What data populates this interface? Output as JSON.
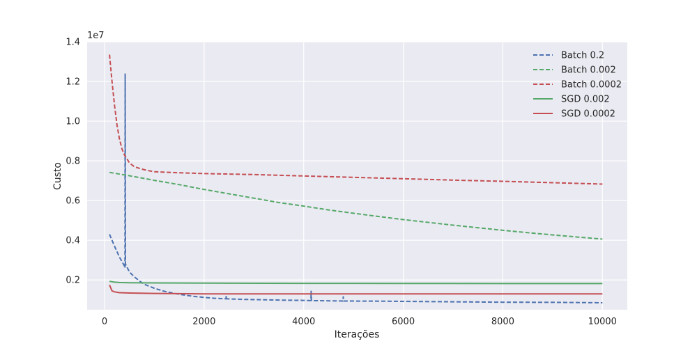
{
  "chart_data": {
    "type": "line",
    "xlabel": "Iterações",
    "ylabel": "Custo",
    "y_multiplier_label": "1e7",
    "xlim": [
      -350,
      10500
    ],
    "ylim": [
      0.05,
      1.4
    ],
    "x_ticks": [
      0,
      2000,
      4000,
      6000,
      8000,
      10000
    ],
    "x_tick_labels": [
      "0",
      "2000",
      "4000",
      "6000",
      "8000",
      "10000"
    ],
    "y_ticks": [
      0.2,
      0.4,
      0.6,
      0.8,
      1.0,
      1.2,
      1.4
    ],
    "y_tick_labels": [
      "0.2",
      "0.4",
      "0.6",
      "0.8",
      "1.0",
      "1.2",
      "1.4"
    ],
    "grid": true,
    "legend_position": "top-right",
    "series": [
      {
        "name": "Batch 0.2",
        "style": "dashed",
        "color": "#4c72b0",
        "points": [
          [
            100,
            0.43
          ],
          [
            200,
            0.37
          ],
          [
            300,
            0.315
          ],
          [
            400,
            0.27
          ],
          [
            410,
            0.26
          ],
          [
            415,
            1.24
          ],
          [
            420,
            0.28
          ],
          [
            500,
            0.24
          ],
          [
            600,
            0.215
          ],
          [
            700,
            0.195
          ],
          [
            800,
            0.178
          ],
          [
            1000,
            0.158
          ],
          [
            1200,
            0.143
          ],
          [
            1400,
            0.132
          ],
          [
            1600,
            0.124
          ],
          [
            1800,
            0.117
          ],
          [
            2000,
            0.112
          ],
          [
            2200,
            0.108
          ],
          [
            2440,
            0.105
          ],
          [
            2445,
            0.12
          ],
          [
            2450,
            0.105
          ],
          [
            2800,
            0.102
          ],
          [
            3200,
            0.1
          ],
          [
            3600,
            0.098
          ],
          [
            4000,
            0.097
          ],
          [
            4145,
            0.096
          ],
          [
            4150,
            0.143
          ],
          [
            4155,
            0.096
          ],
          [
            4500,
            0.095
          ],
          [
            4790,
            0.094
          ],
          [
            4795,
            0.115
          ],
          [
            4800,
            0.094
          ],
          [
            5500,
            0.093
          ],
          [
            6000,
            0.092
          ],
          [
            7000,
            0.09
          ],
          [
            8000,
            0.088
          ],
          [
            9000,
            0.087
          ],
          [
            10000,
            0.085
          ]
        ]
      },
      {
        "name": "Batch 0.002",
        "style": "dashed",
        "color": "#55a868",
        "points": [
          [
            100,
            0.742
          ],
          [
            500,
            0.725
          ],
          [
            1000,
            0.702
          ],
          [
            1500,
            0.68
          ],
          [
            2000,
            0.656
          ],
          [
            2500,
            0.634
          ],
          [
            3000,
            0.612
          ],
          [
            3500,
            0.59
          ],
          [
            4000,
            0.572
          ],
          [
            4500,
            0.553
          ],
          [
            5000,
            0.536
          ],
          [
            5500,
            0.52
          ],
          [
            6000,
            0.504
          ],
          [
            6500,
            0.49
          ],
          [
            7000,
            0.476
          ],
          [
            7500,
            0.463
          ],
          [
            8000,
            0.45
          ],
          [
            8500,
            0.438
          ],
          [
            9000,
            0.427
          ],
          [
            9500,
            0.416
          ],
          [
            10000,
            0.406
          ]
        ]
      },
      {
        "name": "Batch 0.0002",
        "style": "dashed",
        "color": "#c44e52",
        "points": [
          [
            100,
            1.335
          ],
          [
            150,
            1.2
          ],
          [
            200,
            1.08
          ],
          [
            250,
            0.98
          ],
          [
            300,
            0.91
          ],
          [
            350,
            0.86
          ],
          [
            400,
            0.83
          ],
          [
            500,
            0.79
          ],
          [
            600,
            0.77
          ],
          [
            800,
            0.755
          ],
          [
            1000,
            0.745
          ],
          [
            1500,
            0.74
          ],
          [
            2000,
            0.736
          ],
          [
            3000,
            0.731
          ],
          [
            4000,
            0.724
          ],
          [
            5000,
            0.717
          ],
          [
            6000,
            0.71
          ],
          [
            7000,
            0.703
          ],
          [
            8000,
            0.697
          ],
          [
            9000,
            0.69
          ],
          [
            10000,
            0.683
          ]
        ]
      },
      {
        "name": "SGD 0.002",
        "style": "solid",
        "color": "#55a868",
        "points": [
          [
            100,
            0.193
          ],
          [
            200,
            0.189
          ],
          [
            300,
            0.187
          ],
          [
            500,
            0.186
          ],
          [
            1000,
            0.185
          ],
          [
            2000,
            0.184
          ],
          [
            4000,
            0.183
          ],
          [
            6000,
            0.1825
          ],
          [
            8000,
            0.182
          ],
          [
            10000,
            0.182
          ]
        ]
      },
      {
        "name": "SGD 0.0002",
        "style": "solid",
        "color": "#c44e52",
        "points": [
          [
            100,
            0.175
          ],
          [
            150,
            0.145
          ],
          [
            200,
            0.14
          ],
          [
            300,
            0.136
          ],
          [
            500,
            0.134
          ],
          [
            1000,
            0.132
          ],
          [
            2000,
            0.13
          ],
          [
            4000,
            0.13
          ],
          [
            6000,
            0.13
          ],
          [
            8000,
            0.13
          ],
          [
            10000,
            0.13
          ]
        ]
      }
    ]
  }
}
